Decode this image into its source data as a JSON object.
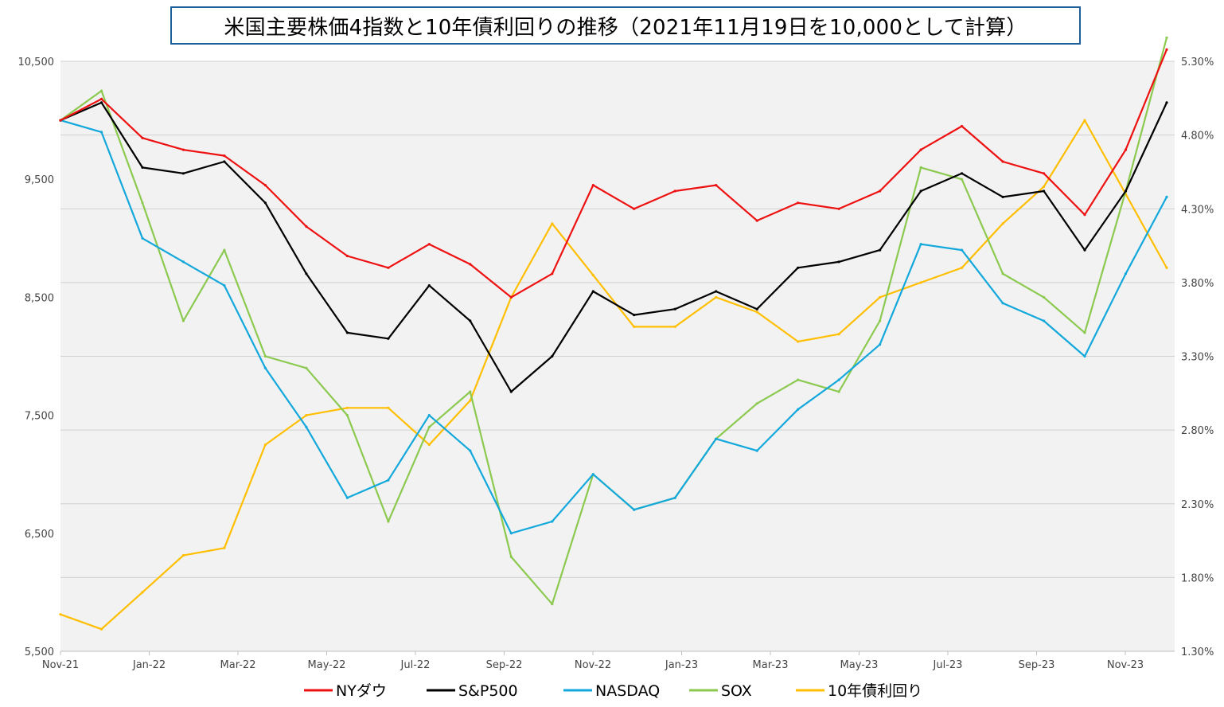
{
  "chart_data": {
    "type": "line",
    "title": "米国主要株価4指数と10年債利回りの推移（2021年11月19日を10,000として計算）",
    "x_tick_labels": [
      "Nov-21",
      "Jan-22",
      "Mar-22",
      "May-22",
      "Jul-22",
      "Sep-22",
      "Nov-22",
      "Jan-23",
      "Mar-23",
      "May-23",
      "Jul-23",
      "Sep-23",
      "Nov-23"
    ],
    "x": [
      "2021-11-19",
      "2021-12-17",
      "2022-01-14",
      "2022-02-11",
      "2022-03-11",
      "2022-04-08",
      "2022-05-06",
      "2022-06-03",
      "2022-07-01",
      "2022-07-29",
      "2022-08-26",
      "2022-09-23",
      "2022-10-21",
      "2022-11-18",
      "2022-12-16",
      "2023-01-13",
      "2023-02-10",
      "2023-03-10",
      "2023-04-07",
      "2023-05-05",
      "2023-06-02",
      "2023-06-30",
      "2023-07-28",
      "2023-08-25",
      "2023-09-22",
      "2023-10-20",
      "2023-11-17",
      "2023-12-15"
    ],
    "y_left": {
      "ylim": [
        5500,
        10500
      ],
      "ticks": [
        "5,500",
        "6,500",
        "7,500",
        "8,500",
        "9,500",
        "10,500"
      ],
      "tick_values": [
        5500,
        6500,
        7500,
        8500,
        9500,
        10500
      ]
    },
    "y_right": {
      "ylim": [
        1.3,
        5.3
      ],
      "ticks": [
        "1.30%",
        "1.80%",
        "2.30%",
        "2.80%",
        "3.30%",
        "3.80%",
        "4.30%",
        "4.80%",
        "5.30%"
      ],
      "tick_values": [
        1.3,
        1.8,
        2.3,
        2.8,
        3.3,
        3.8,
        4.3,
        4.8,
        5.3
      ]
    },
    "grid": true,
    "legend_position": "bottom",
    "series": [
      {
        "name": "NYダウ",
        "color": "#ee1111",
        "axis": "left",
        "values": [
          10000,
          10180,
          9850,
          9750,
          9700,
          9450,
          9100,
          8850,
          8750,
          8950,
          8780,
          8500,
          8700,
          9450,
          9250,
          9400,
          9450,
          9150,
          9300,
          9250,
          9400,
          9750,
          9950,
          9650,
          9550,
          9200,
          9750,
          10600
        ]
      },
      {
        "name": "S&P500",
        "color": "#000000",
        "axis": "left",
        "values": [
          10000,
          10150,
          9600,
          9550,
          9650,
          9300,
          8700,
          8200,
          8150,
          8600,
          8300,
          7700,
          8000,
          8550,
          8350,
          8400,
          8550,
          8400,
          8750,
          8800,
          8900,
          9400,
          9550,
          9350,
          9400,
          8900,
          9400,
          10150
        ]
      },
      {
        "name": "NASDAQ",
        "color": "#12a8dc",
        "axis": "left",
        "values": [
          10000,
          9900,
          9000,
          8800,
          8600,
          7900,
          7400,
          6800,
          6950,
          7500,
          7200,
          6500,
          6600,
          7000,
          6700,
          6800,
          7300,
          7200,
          7550,
          7800,
          8100,
          8950,
          8900,
          8450,
          8300,
          8000,
          8700,
          9350
        ]
      },
      {
        "name": "SOX",
        "color": "#8bc94f",
        "axis": "left",
        "values": [
          10000,
          10250,
          9300,
          8300,
          8900,
          8000,
          7900,
          7500,
          6600,
          7400,
          7700,
          6300,
          5900,
          7000,
          6700,
          6800,
          7300,
          7600,
          7800,
          7700,
          8300,
          9600,
          9500,
          8700,
          8500,
          8200,
          9400,
          10700
        ]
      },
      {
        "name": "10年債利回り",
        "color": "#ffbf00",
        "axis": "right",
        "values": [
          1.55,
          1.45,
          1.7,
          1.95,
          2.0,
          2.7,
          2.9,
          2.95,
          2.95,
          2.7,
          3.0,
          3.7,
          4.2,
          3.85,
          3.5,
          3.5,
          3.7,
          3.6,
          3.4,
          3.45,
          3.7,
          3.8,
          3.9,
          4.2,
          4.45,
          4.9,
          4.4,
          3.9
        ]
      }
    ]
  }
}
